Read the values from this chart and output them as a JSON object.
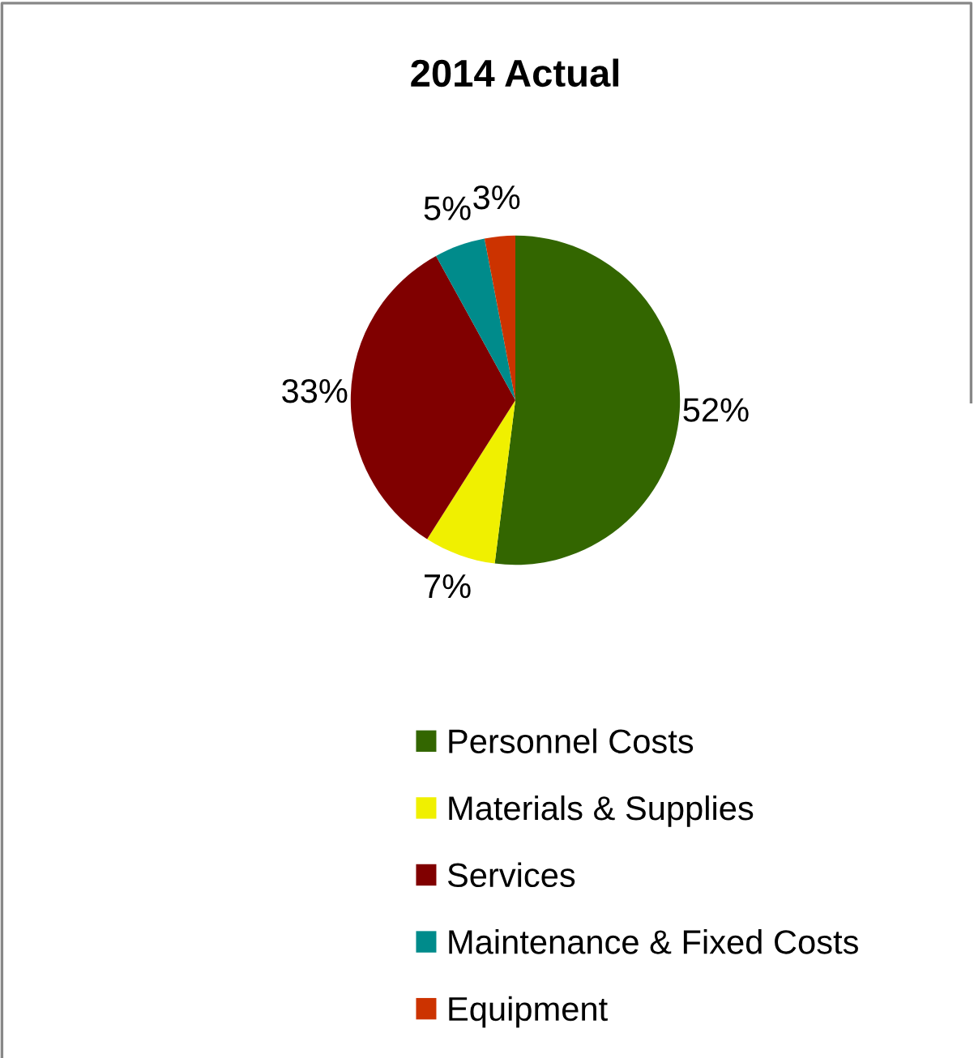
{
  "chart_data": {
    "type": "pie",
    "title": "2014 Actual",
    "categories": [
      "Personnel Costs",
      "Materials & Supplies",
      "Services",
      "Maintenance & Fixed Costs",
      "Equipment"
    ],
    "values": [
      52,
      7,
      33,
      5,
      3
    ],
    "colors": [
      "#336600",
      "#f0f000",
      "#800000",
      "#008b8b",
      "#cc3300"
    ],
    "value_labels": [
      "52%",
      "7%",
      "33%",
      "5%",
      "3%"
    ],
    "legend": "bottom"
  }
}
